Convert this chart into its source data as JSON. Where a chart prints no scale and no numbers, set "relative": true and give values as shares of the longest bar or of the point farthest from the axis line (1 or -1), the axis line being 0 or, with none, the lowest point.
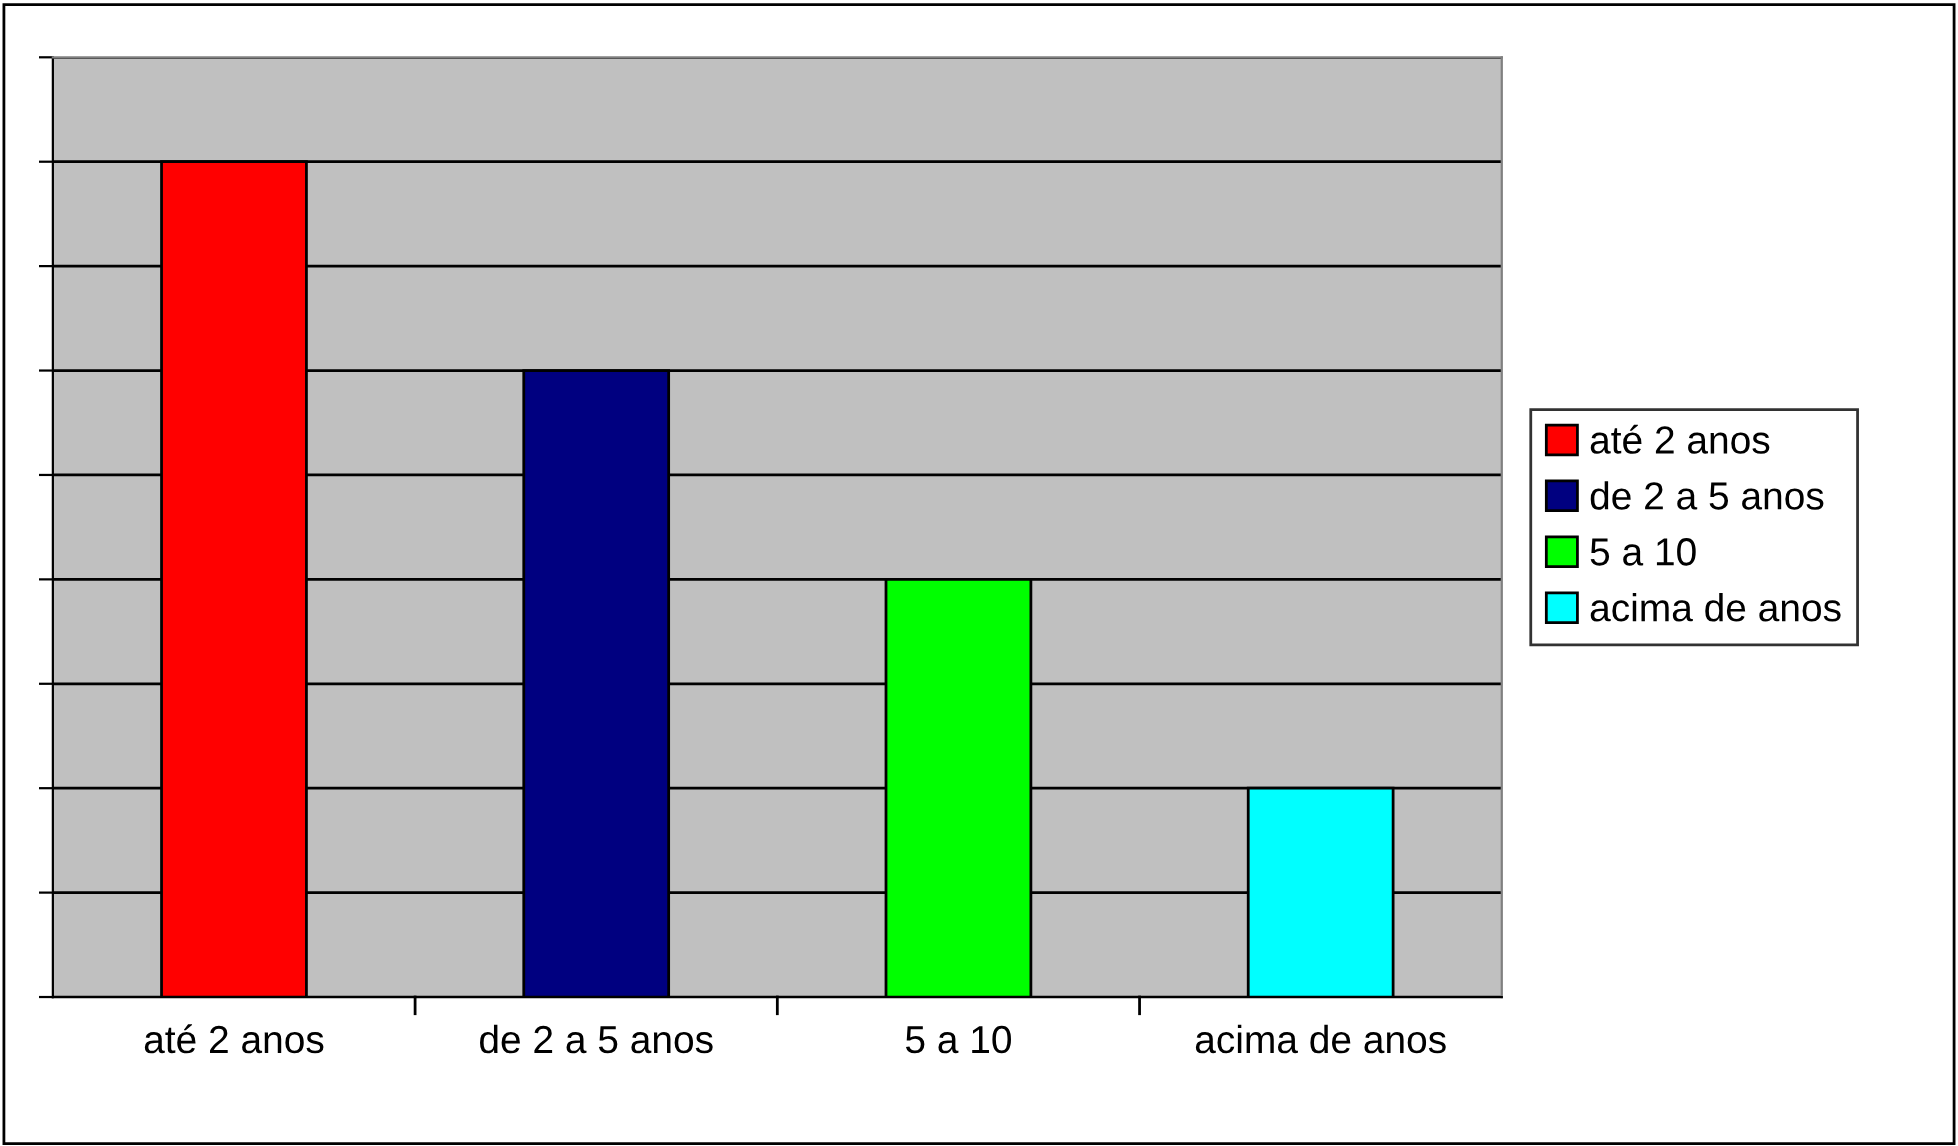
{
  "chart_data": {
    "type": "bar",
    "relative": true,
    "categories": [
      "até 2 anos",
      "de 2 a 5 anos",
      "5 a 10",
      "acima de anos"
    ],
    "series": [
      {
        "name": "até 2 anos",
        "color": "#ff0000",
        "values": [
          1,
          null,
          null,
          null
        ]
      },
      {
        "name": "de 2 a 5 anos",
        "color": "#000080",
        "values": [
          null,
          0.75,
          null,
          null
        ]
      },
      {
        "name": "5 a 10",
        "color": "#00ff00",
        "values": [
          null,
          null,
          0.5,
          null
        ]
      },
      {
        "name": "acima de anos",
        "color": "#00ffff",
        "values": [
          null,
          null,
          null,
          0.25
        ]
      }
    ],
    "grid": "y",
    "legend": "right"
  }
}
